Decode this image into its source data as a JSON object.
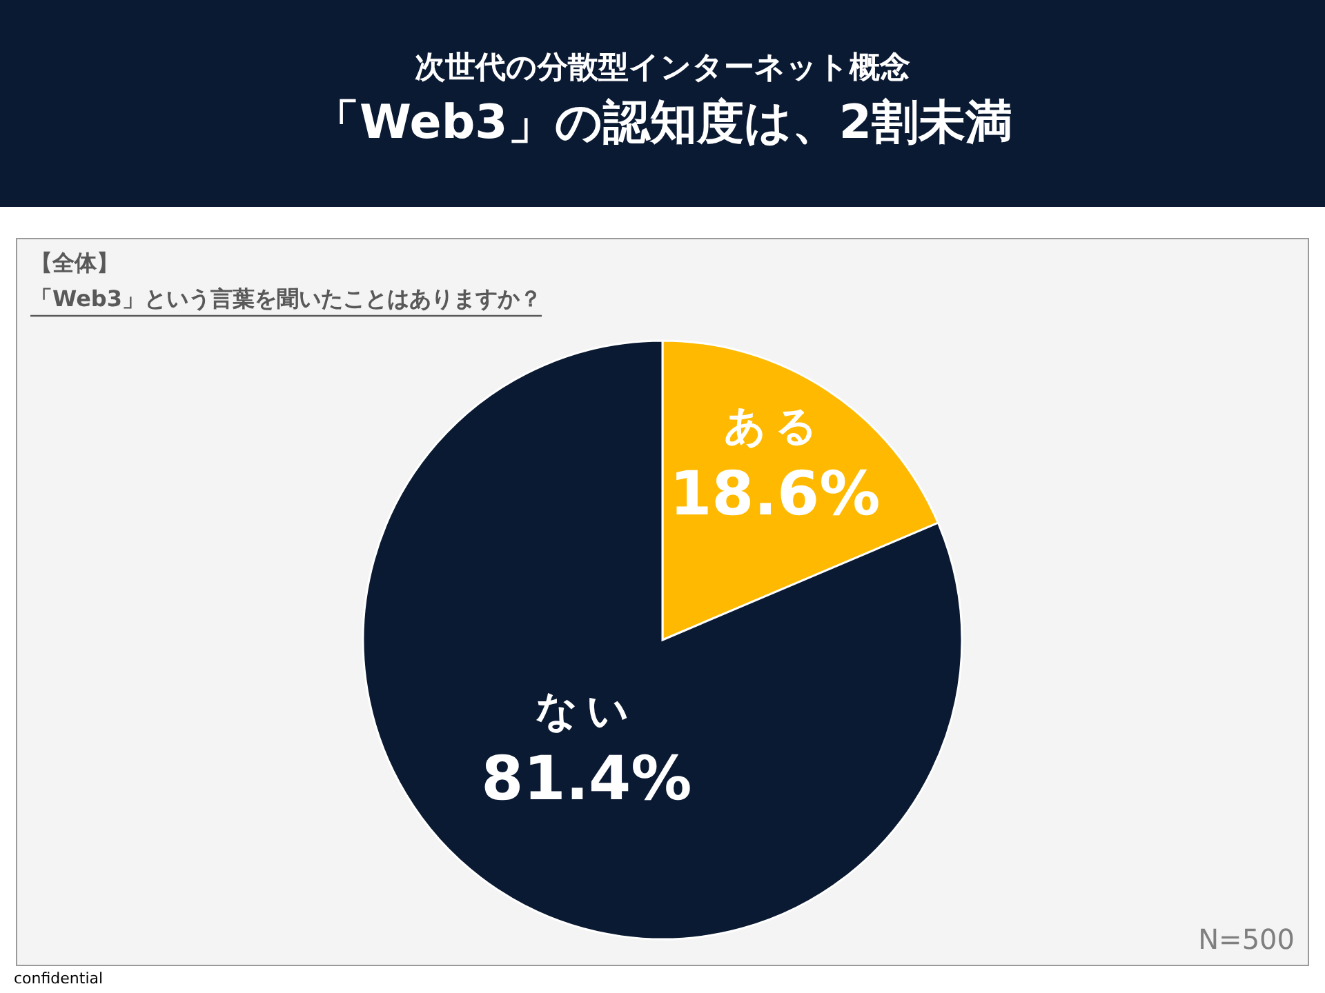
{
  "chart_data": {
    "type": "pie",
    "subtitle": "次世代の分散型インターネット概念",
    "title": "「Web3」の認知度は、2割未満",
    "categories": [
      "ある",
      "ない"
    ],
    "values": [
      18.6,
      81.4
    ],
    "colors": [
      "#ffb900",
      "#0b1a33"
    ],
    "value_labels": [
      "18.6%",
      "81.4%"
    ],
    "annotations": [
      "【全体】",
      "「Web3」という言葉を聞いたことはありますか？",
      "N=500",
      "confidential"
    ]
  }
}
